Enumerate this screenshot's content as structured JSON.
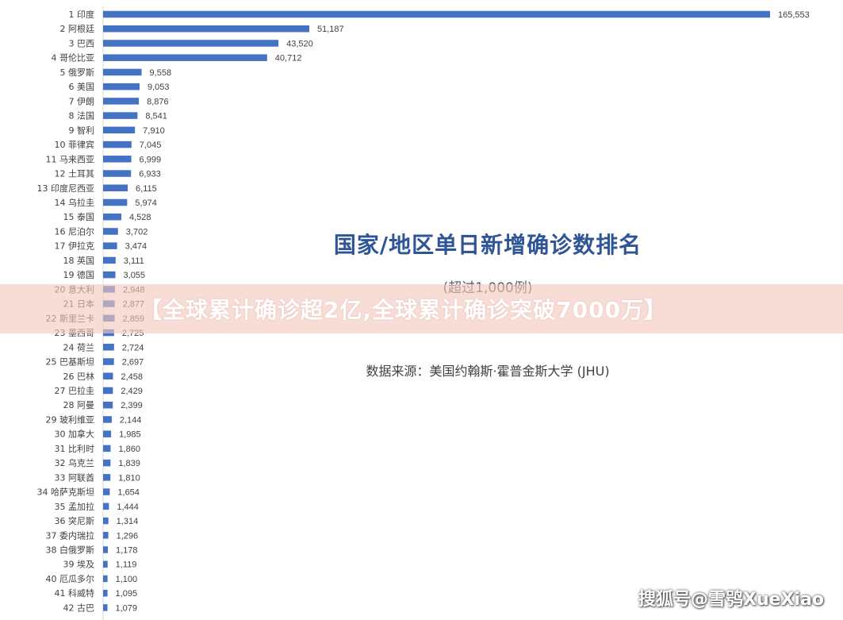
{
  "chart_data": {
    "type": "bar",
    "orientation": "horizontal",
    "title": "国家/地区单日新增确诊数排名",
    "subtitle": "(超过1,000例)",
    "source": "数据来源：美国约翰斯·霍普金斯大学 (JHU)",
    "categories": [
      "1 印度",
      "2 阿根廷",
      "3 巴西",
      "4 哥伦比亚",
      "5 俄罗斯",
      "6 美国",
      "7 伊朗",
      "8 法国",
      "9 智利",
      "10 菲律宾",
      "11 马来西亚",
      "12 土耳其",
      "13 印度尼西亚",
      "14 乌拉圭",
      "15 泰国",
      "16 尼泊尔",
      "17 伊拉克",
      "18 英国",
      "19 德国",
      "20 意大利",
      "21 日本",
      "22 斯里兰卡",
      "23 墨西哥",
      "24 荷兰",
      "25 巴基斯坦",
      "26 巴林",
      "27 巴拉圭",
      "28 阿曼",
      "29 玻利维亚",
      "30 加拿大",
      "31 比利时",
      "32 乌克兰",
      "33 阿联酋",
      "34 哈萨克斯坦",
      "35 孟加拉",
      "36 突尼斯",
      "37 委内瑞拉",
      "38 白俄罗斯",
      "39 埃及",
      "40 厄瓜多尔",
      "41 科威特",
      "42 古巴"
    ],
    "values": [
      165553,
      51187,
      43520,
      40712,
      9558,
      9053,
      8876,
      8541,
      7910,
      7045,
      6999,
      6933,
      6115,
      5974,
      4528,
      3702,
      3474,
      3111,
      3055,
      2948,
      2877,
      2859,
      2725,
      2724,
      2697,
      2458,
      2429,
      2399,
      2144,
      1985,
      1860,
      1839,
      1810,
      1654,
      1444,
      1314,
      1296,
      1178,
      1119,
      1100,
      1095,
      1079
    ],
    "value_labels": [
      "165,553",
      "51,187",
      "43,520",
      "40,712",
      "9,558",
      "9,053",
      "8,876",
      "8,541",
      "7,910",
      "7,045",
      "6,999",
      "6,933",
      "6,115",
      "5,974",
      "4,528",
      "3,702",
      "3,474",
      "3,111",
      "3,055",
      "2,948",
      "2,877",
      "2,859",
      "2,725",
      "2,724",
      "2,697",
      "2,458",
      "2,429",
      "2,399",
      "2,144",
      "1,985",
      "1,860",
      "1,839",
      "1,810",
      "1,654",
      "1,444",
      "1,314",
      "1,296",
      "1,178",
      "1,119",
      "1,100",
      "1,095",
      "1,079"
    ],
    "xlim": [
      0,
      170000
    ],
    "grid": false,
    "legend": "none",
    "bar_color": "#4472c4"
  },
  "banner": {
    "text": "【全球累计确诊超2亿,全球累计确诊突破7000万】"
  },
  "watermark": {
    "text": "搜狐号@雪鸮XueXiao"
  }
}
